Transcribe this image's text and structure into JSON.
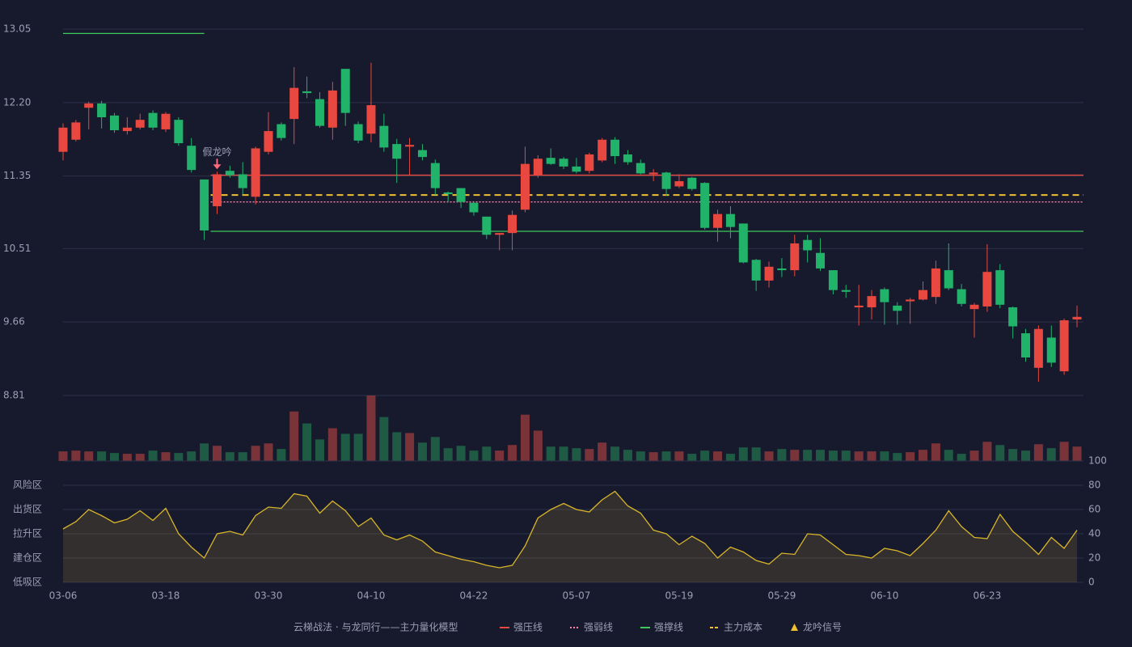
{
  "chart_data": [
    {
      "type": "candlestick",
      "x": [
        "03-06",
        null,
        null,
        null,
        null,
        null,
        null,
        null,
        "03-18",
        null,
        null,
        null,
        null,
        null,
        null,
        null,
        "03-30",
        null,
        null,
        null,
        null,
        null,
        null,
        null,
        "04-10",
        null,
        null,
        null,
        null,
        null,
        null,
        null,
        "04-22",
        null,
        null,
        null,
        null,
        null,
        null,
        null,
        "05-07",
        null,
        null,
        null,
        null,
        null,
        null,
        null,
        "05-19",
        null,
        null,
        null,
        null,
        null,
        null,
        null,
        "05-29",
        null,
        null,
        null,
        null,
        null,
        null,
        null,
        "06-10",
        null,
        null,
        null,
        null,
        null,
        null,
        null,
        "06-23",
        null,
        null,
        null,
        null,
        null,
        null,
        null
      ],
      "open": [
        11.63,
        11.77,
        12.14,
        12.19,
        12.05,
        11.87,
        11.91,
        12.08,
        11.89,
        12.0,
        11.7,
        11.31,
        11.0,
        11.41,
        11.37,
        11.11,
        11.63,
        11.95,
        12.01,
        12.33,
        12.24,
        11.91,
        12.59,
        11.95,
        11.84,
        11.93,
        11.72,
        11.69,
        11.65,
        11.5,
        11.16,
        11.21,
        11.04,
        10.88,
        10.67,
        10.69,
        10.96,
        11.36,
        11.56,
        11.55,
        11.46,
        11.41,
        11.53,
        11.77,
        11.6,
        11.5,
        11.37,
        11.39,
        11.23,
        11.33,
        11.27,
        10.75,
        10.91,
        10.8,
        10.38,
        10.14,
        10.28,
        10.26,
        10.61,
        10.46,
        10.26,
        10.03,
        9.83,
        9.83,
        10.04,
        9.85,
        9.9,
        9.92,
        9.95,
        10.26,
        10.04,
        9.81,
        9.84,
        10.26,
        9.83,
        9.53,
        9.13,
        9.48,
        9.09,
        9.69
      ],
      "high": [
        11.96,
        12.0,
        12.21,
        12.22,
        12.08,
        12.03,
        12.07,
        12.11,
        12.09,
        12.03,
        11.79,
        11.31,
        11.4,
        11.47,
        11.51,
        11.69,
        12.09,
        11.97,
        12.61,
        12.5,
        12.32,
        12.44,
        12.59,
        11.98,
        12.66,
        12.07,
        11.78,
        11.79,
        11.72,
        11.54,
        11.17,
        11.21,
        11.05,
        10.88,
        10.69,
        10.95,
        11.69,
        11.59,
        11.67,
        11.57,
        11.56,
        11.62,
        11.79,
        11.8,
        11.65,
        11.54,
        11.43,
        11.4,
        11.37,
        11.34,
        11.28,
        10.96,
        11.0,
        10.8,
        10.39,
        10.36,
        10.4,
        10.67,
        10.67,
        10.63,
        10.26,
        10.09,
        10.09,
        10.03,
        10.06,
        9.89,
        9.94,
        10.13,
        10.37,
        10.57,
        10.1,
        9.88,
        10.56,
        10.33,
        9.84,
        9.58,
        9.62,
        9.62,
        9.7,
        9.85
      ],
      "low": [
        11.53,
        11.75,
        11.89,
        11.9,
        11.85,
        11.83,
        11.89,
        11.88,
        11.86,
        11.7,
        11.39,
        10.61,
        10.91,
        11.33,
        11.14,
        11.02,
        11.6,
        11.76,
        11.72,
        12.25,
        11.91,
        11.77,
        11.93,
        11.73,
        11.74,
        11.63,
        11.27,
        11.36,
        11.53,
        11.13,
        11.05,
        10.98,
        10.89,
        10.62,
        10.49,
        10.49,
        10.93,
        11.33,
        11.48,
        11.43,
        11.38,
        11.38,
        11.51,
        11.49,
        11.48,
        11.37,
        11.29,
        11.12,
        11.21,
        11.18,
        10.73,
        10.59,
        10.63,
        10.34,
        10.02,
        10.06,
        10.18,
        10.19,
        10.35,
        10.25,
        9.98,
        9.94,
        9.62,
        9.69,
        9.63,
        9.63,
        9.64,
        9.91,
        9.87,
        10.03,
        9.84,
        9.48,
        9.78,
        9.82,
        9.47,
        9.2,
        8.97,
        9.14,
        9.05,
        9.6
      ],
      "close": [
        11.91,
        11.97,
        12.19,
        12.03,
        11.88,
        11.91,
        12.0,
        11.91,
        12.07,
        11.73,
        11.42,
        10.72,
        11.37,
        11.36,
        11.21,
        11.67,
        11.87,
        11.79,
        12.37,
        12.31,
        11.93,
        12.34,
        12.08,
        11.76,
        12.17,
        11.68,
        11.55,
        11.71,
        11.57,
        11.21,
        11.14,
        11.05,
        10.93,
        10.67,
        10.69,
        10.9,
        11.49,
        11.55,
        11.49,
        11.46,
        11.4,
        11.6,
        11.77,
        11.58,
        11.51,
        11.38,
        11.39,
        11.2,
        11.29,
        11.2,
        10.75,
        10.91,
        10.76,
        10.35,
        10.14,
        10.3,
        10.26,
        10.57,
        10.49,
        10.28,
        10.03,
        10.01,
        9.85,
        9.96,
        9.89,
        9.79,
        9.92,
        10.03,
        10.28,
        10.05,
        9.87,
        9.86,
        10.24,
        9.86,
        9.61,
        9.25,
        9.58,
        9.19,
        9.68,
        9.72
      ],
      "up_color": "#e8483f",
      "down_color": "#22b36b",
      "ylim": [
        8.81,
        13.05
      ],
      "yticks": [
        13.05,
        {
          "value": 12.2,
          "label": "12.20"
        },
        11.35,
        10.51,
        9.66,
        8.81
      ],
      "levels": [
        {
          "name": "强压线",
          "color": "#e8483f",
          "style": "solid",
          "segments": [
            {
              "value": 11.36,
              "from": 12,
              "to": 79
            }
          ]
        },
        {
          "name": "强弱线",
          "color": "#ff7fa8",
          "style": "dotted",
          "segments": [
            {
              "value": 11.05,
              "from": 12,
              "to": 79
            }
          ]
        },
        {
          "name": "强撑线",
          "color": "#3ec95a",
          "style": "solid",
          "segments": [
            {
              "value": 13.0,
              "from": 0,
              "to": 11
            },
            {
              "value": 10.71,
              "from": 12,
              "to": 79
            }
          ]
        },
        {
          "name": "主力成本",
          "color": "#f0c030",
          "style": "dashed",
          "segments": [
            {
              "value": 11.13,
              "from": 12,
              "to": 79
            }
          ]
        }
      ],
      "signal": {
        "name": "龙吟信号",
        "color": "#f0c030",
        "label": "假龙吟",
        "label_color": "#ff6b81",
        "index": 12
      },
      "legend_title": "云梯战法 · 与龙同行——主力量化模型"
    },
    {
      "type": "bar",
      "values": [
        12,
        13,
        12,
        12,
        10,
        9,
        9,
        13,
        11,
        10,
        12,
        22,
        19,
        11,
        11,
        19,
        22,
        15,
        62,
        47,
        27,
        41,
        34,
        34,
        82,
        55,
        36,
        35,
        23,
        30,
        16,
        19,
        13,
        18,
        13,
        20,
        58,
        38,
        18,
        18,
        16,
        15,
        23,
        18,
        14,
        12,
        11,
        12,
        12,
        9,
        13,
        12,
        9,
        17,
        17,
        12,
        15,
        14,
        14,
        14,
        13,
        13,
        12,
        12,
        12,
        10,
        11,
        14,
        22,
        14,
        9,
        13,
        24,
        20,
        15,
        13,
        21,
        16,
        24,
        18
      ],
      "up_color": "#7a3439",
      "down_color": "#1f5a44"
    },
    {
      "type": "line",
      "values": [
        44,
        50,
        60,
        55,
        49,
        52,
        59,
        51,
        61,
        40,
        29,
        20,
        40,
        42,
        39,
        55,
        62,
        61,
        73,
        71,
        57,
        67,
        59,
        46,
        53,
        39,
        35,
        39,
        34,
        25,
        22,
        19,
        17,
        14,
        12,
        14,
        30,
        53,
        60,
        65,
        60,
        58,
        68,
        75,
        63,
        57,
        43,
        40,
        31,
        38,
        32,
        20,
        29,
        25,
        18,
        15,
        24,
        23,
        40,
        39,
        31,
        23,
        22,
        20,
        28,
        26,
        22,
        32,
        43,
        59,
        46,
        37,
        36,
        56,
        42,
        33,
        23,
        37,
        28,
        43
      ],
      "color": "#d8b52a",
      "ylim": [
        0,
        100
      ],
      "yticks": [
        0,
        20,
        40,
        60,
        80,
        100
      ],
      "tick_colors": [
        "#e84a4a",
        "#e85a5a",
        "#4f8fe8",
        "#d84fd8",
        "#e8a13a",
        "#3ec95a"
      ],
      "zones": [
        {
          "label": "风险区",
          "value": 80,
          "color": "#e8a13a"
        },
        {
          "label": "出货区",
          "value": 60,
          "color": "#d84fd8"
        },
        {
          "label": "拉升区",
          "value": 40,
          "color": "#4f8fe8"
        },
        {
          "label": "建仓区",
          "value": 20,
          "color": "#e85a5a"
        },
        {
          "label": "低吸区",
          "value": 0,
          "color": "#e84a4a"
        }
      ]
    }
  ]
}
